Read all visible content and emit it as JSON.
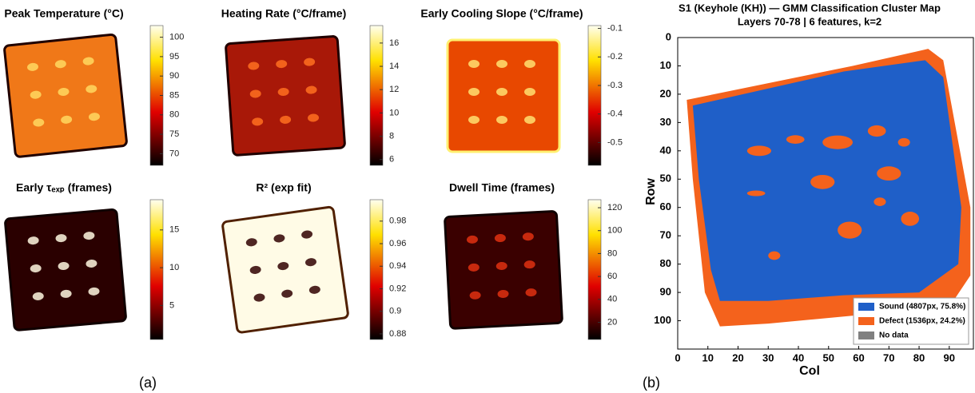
{
  "chart_data": [
    {
      "type": "heatmap",
      "title": "Peak Temperature (°C)",
      "colormap": "hot",
      "ylim": [
        67,
        103
      ],
      "yticks": [
        70,
        75,
        80,
        85,
        90,
        95,
        100
      ]
    },
    {
      "type": "heatmap",
      "title": "Heating Rate (°C/frame)",
      "colormap": "hot",
      "ylim": [
        5.5,
        17.5
      ],
      "yticks": [
        6,
        8,
        10,
        12,
        14,
        16
      ]
    },
    {
      "type": "heatmap",
      "title": "Early Cooling Slope (°C/frame)",
      "colormap": "hot",
      "ylim": [
        -0.58,
        -0.09
      ],
      "yticks": [
        -0.1,
        -0.2,
        -0.3,
        -0.4,
        -0.5
      ]
    },
    {
      "type": "heatmap",
      "title": "Early τₑₓₚ (frames)",
      "colormap": "hot",
      "ylim": [
        0.5,
        19
      ],
      "yticks": [
        5,
        10,
        15
      ]
    },
    {
      "type": "heatmap",
      "title": "R² (exp fit)",
      "colormap": "hot",
      "ylim": [
        0.875,
        0.999
      ],
      "yticks": [
        0.88,
        0.9,
        0.92,
        0.94,
        0.96,
        0.98
      ]
    },
    {
      "type": "heatmap",
      "title": "Dwell Time (frames)",
      "colormap": "hot",
      "ylim": [
        5,
        127
      ],
      "yticks": [
        20,
        40,
        60,
        80,
        100,
        120
      ]
    },
    {
      "type": "classmap",
      "title": "S1 (Keyhole (KH)) — GMM Classification Cluster Map",
      "subtitle": "Layers 70-78  |  6 features, k=2",
      "xlabel": "Col",
      "ylabel": "Row",
      "xlim": [
        0,
        98
      ],
      "ylim": [
        0,
        110
      ],
      "y_reversed": true,
      "xticks": [
        0,
        10,
        20,
        30,
        40,
        50,
        60,
        70,
        80,
        90
      ],
      "yticks": [
        0,
        10,
        20,
        30,
        40,
        50,
        60,
        70,
        80,
        90,
        100
      ],
      "legend": "lower right",
      "series": [
        {
          "name": "Sound (4807px, 75.8%)",
          "color": "#1f5fc8"
        },
        {
          "name": "Defect (1536px, 24.2%)",
          "color": "#f4621c"
        },
        {
          "name": "No data",
          "color": "#808080"
        }
      ]
    }
  ],
  "panel_labels": [
    "(a)",
    "(b)"
  ]
}
